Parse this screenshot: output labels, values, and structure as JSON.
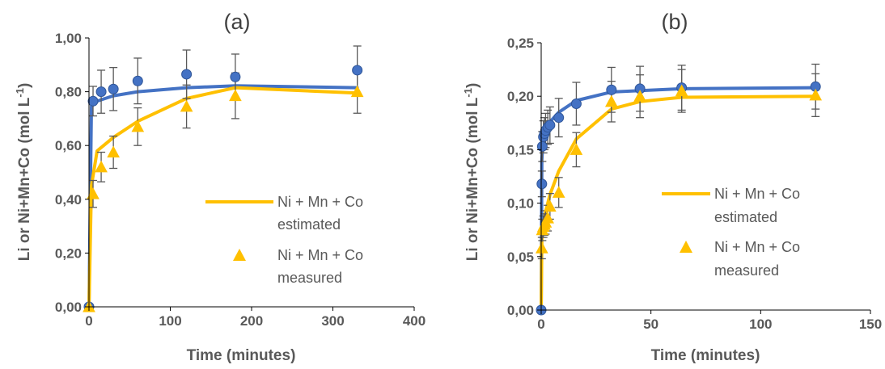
{
  "chart_data": [
    {
      "type": "line",
      "title": "(a)",
      "xlabel": "Time (minutes)",
      "ylabel": "Li or Ni+Mn+Co (mol L",
      "ylabel_sup": "-1",
      "ylabel_tail": ")",
      "xlim": [
        0,
        400
      ],
      "ylim": [
        0,
        1.0
      ],
      "xticks": [
        0,
        100,
        200,
        300,
        400
      ],
      "yticks": [
        0,
        0.2,
        0.4,
        0.6,
        0.8,
        1.0
      ],
      "xtick_labels": [
        "0",
        "100",
        "200",
        "300",
        "400"
      ],
      "ytick_labels": [
        "0,00",
        "0,20",
        "0,40",
        "0,60",
        "0,80",
        "1,00"
      ],
      "grid": false,
      "legend_position": "center-right",
      "legend": [
        {
          "label_line1": "Ni + Mn + Co",
          "label_line2": "estimated",
          "marker": "line",
          "color": "#FFC000"
        },
        {
          "label_line1": "Ni + Mn + Co",
          "label_line2": "measured",
          "marker": "triangle",
          "color": "#FFC000"
        }
      ],
      "series": [
        {
          "role": "estimated",
          "marker": "line",
          "color": "#4472C4",
          "x": [
            0,
            3,
            10,
            30,
            60,
            120,
            180,
            330
          ],
          "y": [
            0,
            0.745,
            0.765,
            0.785,
            0.8,
            0.815,
            0.822,
            0.815
          ]
        },
        {
          "role": "measured",
          "marker": "circle",
          "color": "#4472C4",
          "x": [
            0,
            5,
            15,
            30,
            60,
            120,
            180,
            330
          ],
          "y": [
            0,
            0.765,
            0.8,
            0.81,
            0.84,
            0.865,
            0.855,
            0.88
          ],
          "err": [
            0,
            0.055,
            0.08,
            0.08,
            0.085,
            0.09,
            0.085,
            0.09
          ]
        },
        {
          "name": "Ni + Mn + Co estimated",
          "role": "estimated",
          "marker": "line",
          "color": "#FFC000",
          "x": [
            0,
            3,
            10,
            30,
            60,
            120,
            180,
            330
          ],
          "y": [
            0,
            0.45,
            0.58,
            0.63,
            0.69,
            0.775,
            0.815,
            0.795
          ]
        },
        {
          "name": "Ni + Mn + Co measured",
          "role": "measured",
          "marker": "triangle",
          "color": "#FFC000",
          "x": [
            0,
            5,
            15,
            30,
            60,
            120,
            180,
            330
          ],
          "y": [
            0,
            0.42,
            0.52,
            0.575,
            0.67,
            0.745,
            0.785,
            0.8
          ],
          "err": [
            0,
            0.05,
            0.055,
            0.06,
            0.07,
            0.08,
            0.085,
            0.08
          ]
        }
      ]
    },
    {
      "type": "line",
      "title": "(b)",
      "xlabel": "Time (minutes)",
      "ylabel": "Li or Ni+Mn+Co (mol L",
      "ylabel_sup": "-1",
      "ylabel_tail": ")",
      "xlim": [
        0,
        150
      ],
      "ylim": [
        0,
        0.25
      ],
      "xticks": [
        0,
        50,
        100,
        150
      ],
      "yticks": [
        0,
        0.05,
        0.1,
        0.15,
        0.2,
        0.25
      ],
      "xtick_labels": [
        "0",
        "50",
        "100",
        "150"
      ],
      "ytick_labels": [
        "0,00",
        "0,05",
        "0,10",
        "0,15",
        "0,20",
        "0,25"
      ],
      "grid": false,
      "legend_position": "center-right",
      "legend": [
        {
          "label_line1": "Ni + Mn + Co",
          "label_line2": "estimated",
          "marker": "line",
          "color": "#FFC000"
        },
        {
          "label_line1": "Ni + Mn + Co",
          "label_line2": "measured",
          "marker": "triangle",
          "color": "#FFC000"
        }
      ],
      "series": [
        {
          "role": "estimated",
          "marker": "line",
          "color": "#4472C4",
          "x": [
            0,
            0.3,
            0.7,
            1,
            2,
            4,
            8,
            16,
            32,
            64,
            125
          ],
          "y": [
            0,
            0.14,
            0.155,
            0.162,
            0.17,
            0.176,
            0.185,
            0.196,
            0.204,
            0.207,
            0.208
          ]
        },
        {
          "role": "measured",
          "marker": "circle",
          "color": "#4472C4",
          "x": [
            0,
            0.3,
            0.5,
            1,
            1.5,
            2,
            3,
            4,
            8,
            16,
            32,
            45,
            64,
            125
          ],
          "y": [
            0,
            0.118,
            0.153,
            0.162,
            0.165,
            0.168,
            0.171,
            0.173,
            0.18,
            0.193,
            0.206,
            0.207,
            0.208,
            0.209
          ],
          "err": [
            0,
            0.012,
            0.014,
            0.015,
            0.015,
            0.016,
            0.016,
            0.017,
            0.018,
            0.02,
            0.021,
            0.021,
            0.021,
            0.021
          ]
        },
        {
          "name": "Ni + Mn + Co estimated",
          "role": "estimated",
          "marker": "line",
          "color": "#FFC000",
          "x": [
            0,
            0.3,
            1,
            2,
            4,
            8,
            16,
            32,
            45,
            64,
            125
          ],
          "y": [
            0,
            0.065,
            0.08,
            0.092,
            0.108,
            0.13,
            0.16,
            0.188,
            0.195,
            0.199,
            0.2
          ]
        },
        {
          "name": "Ni + Mn + Co measured",
          "role": "measured",
          "marker": "triangle",
          "color": "#FFC000",
          "x": [
            0.3,
            0.5,
            1,
            1.5,
            2,
            3,
            4,
            8,
            16,
            32,
            45,
            64,
            125
          ],
          "y": [
            0.058,
            0.075,
            0.078,
            0.08,
            0.082,
            0.086,
            0.097,
            0.11,
            0.15,
            0.195,
            0.2,
            0.205,
            0.201
          ],
          "err": [
            0.01,
            0.01,
            0.01,
            0.01,
            0.011,
            0.012,
            0.012,
            0.014,
            0.016,
            0.019,
            0.02,
            0.02,
            0.02
          ]
        }
      ]
    }
  ]
}
